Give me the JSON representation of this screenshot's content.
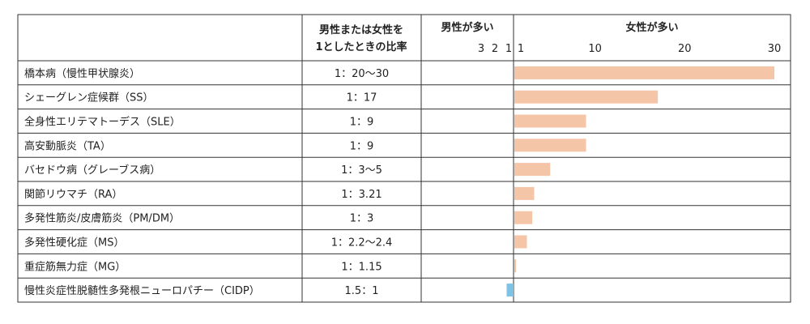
{
  "headers": {
    "ratio": [
      "男性または女性を",
      "1としたときの比率"
    ],
    "male_more": "男性が多い",
    "female_more": "女性が多い",
    "male_ticks": [
      "3",
      "2",
      "1"
    ],
    "female_ticks": [
      "1",
      "10",
      "20",
      "30"
    ]
  },
  "colors": {
    "female_bar": "#f5c5a8",
    "male_bar": "#7ec3e6"
  },
  "chart_data": {
    "type": "bar",
    "orientation": "horizontal",
    "female_axis_range": [
      1,
      30
    ],
    "male_axis_range": [
      1,
      3
    ],
    "rows": [
      {
        "disease": "橋本病（慢性甲状腺炎）",
        "ratio_text": "1：20〜30",
        "side": "female",
        "value": 30
      },
      {
        "disease": "シェーグレン症候群（SS）",
        "ratio_text": "1：17",
        "side": "female",
        "value": 17
      },
      {
        "disease": "全身性エリテマトーデス（SLE）",
        "ratio_text": "1：9",
        "side": "female",
        "value": 9
      },
      {
        "disease": "高安動脈炎（TA）",
        "ratio_text": "1：9",
        "side": "female",
        "value": 9
      },
      {
        "disease": "バセドウ病（グレーブス病）",
        "ratio_text": "1：3〜5",
        "side": "female",
        "value": 5
      },
      {
        "disease": "関節リウマチ（RA）",
        "ratio_text": "1：3.21",
        "side": "female",
        "value": 3.21
      },
      {
        "disease": "多発性筋炎/皮膚筋炎（PM/DM）",
        "ratio_text": "1：3",
        "side": "female",
        "value": 3
      },
      {
        "disease": "多発性硬化症（MS）",
        "ratio_text": "1：2.2〜2.4",
        "side": "female",
        "value": 2.4
      },
      {
        "disease": "重症筋無力症（MG）",
        "ratio_text": "1：1.15",
        "side": "female",
        "value": 1.15
      },
      {
        "disease": "慢性炎症性脱髄性多発根ニューロパチー（CIDP）",
        "ratio_text": "1.5：1",
        "side": "male",
        "value": 1.5
      }
    ]
  }
}
